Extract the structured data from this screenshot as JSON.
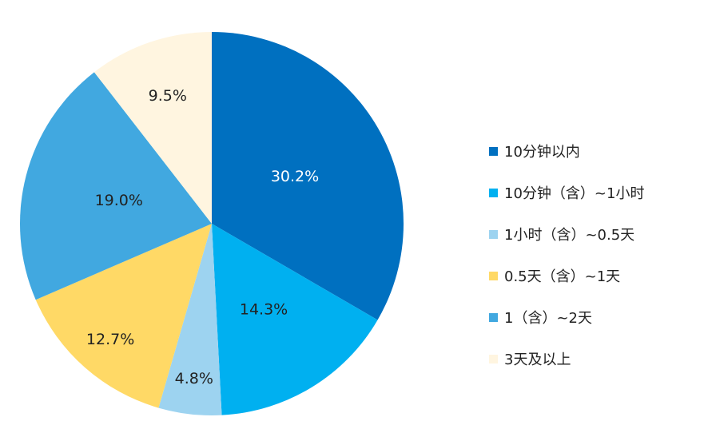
{
  "chart_data": {
    "type": "pie",
    "title": "",
    "start": "top",
    "direction": "clockwise",
    "legend_position": "right",
    "slices": [
      {
        "label": "10分钟以内",
        "value": 30.2,
        "display": "30.2%",
        "color": "#0070C0",
        "label_color": "#ffffff"
      },
      {
        "label": "10分钟（含）~1小时",
        "value": 14.3,
        "display": "14.3%",
        "color": "#00B0F0",
        "label_color": "#222222"
      },
      {
        "label": "1小时（含）~0.5天",
        "value": 4.8,
        "display": "4.8%",
        "color": "#9DD3F0",
        "label_color": "#222222"
      },
      {
        "label": "0.5天（含）~1天",
        "value": 12.7,
        "display": "12.7%",
        "color": "#FFD966",
        "label_color": "#222222"
      },
      {
        "label": "1（含）~2天",
        "value": 19.0,
        "display": "19.0%",
        "color": "#41A8E0",
        "label_color": "#222222"
      },
      {
        "label": "3天及以上",
        "value": 9.5,
        "display": "9.5%",
        "color": "#FFF5E0",
        "label_color": "#222222"
      }
    ]
  }
}
